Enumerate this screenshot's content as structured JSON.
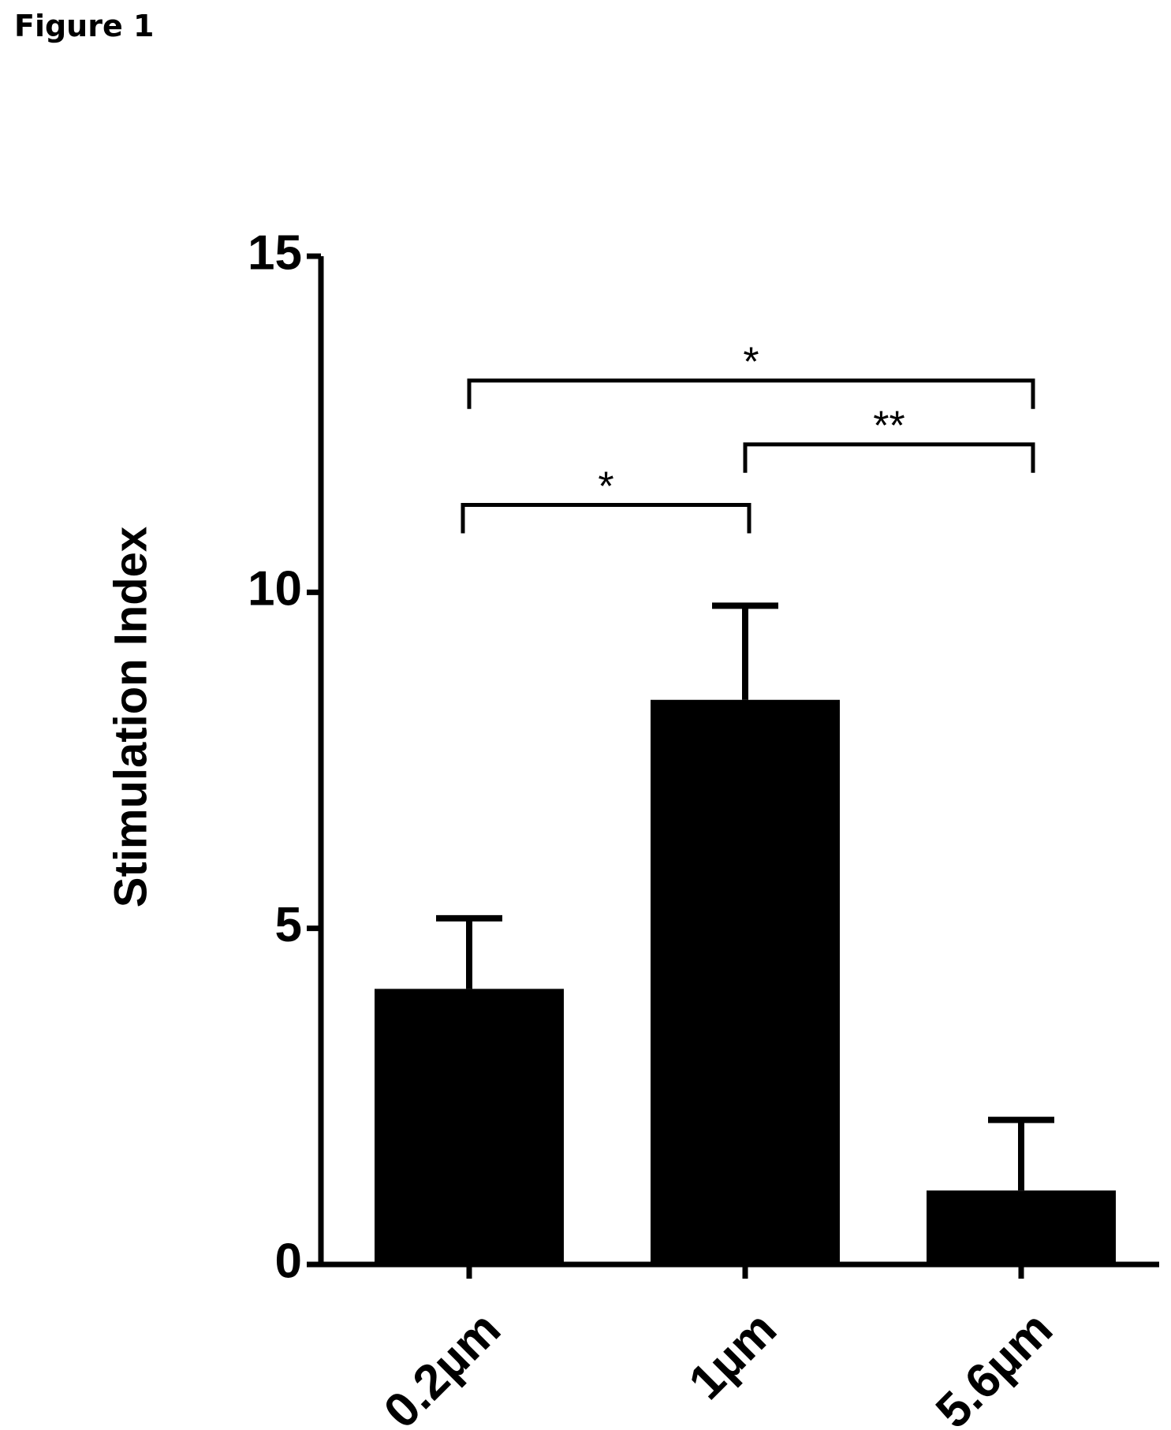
{
  "figure_label": "Figure 1",
  "chart_data": {
    "type": "bar",
    "categories": [
      "0.2µm",
      "1µm",
      "5.6µm"
    ],
    "values": [
      4.1,
      8.4,
      1.1
    ],
    "error_upper": [
      5.15,
      9.8,
      2.15
    ],
    "title": "",
    "xlabel": "",
    "ylabel": "Stimulation Index",
    "ylim": [
      0,
      15
    ],
    "yticks": [
      0,
      5,
      10,
      15
    ],
    "ytick_labels": [
      "0",
      "5",
      "10",
      "15"
    ],
    "bar_color": "#000000",
    "grid": false,
    "significance": [
      {
        "from": 0,
        "to": 1,
        "label": "*",
        "y": 11.3
      },
      {
        "from": 1,
        "to": 2,
        "label": "**",
        "y": 12.2
      },
      {
        "from": 0,
        "to": 2,
        "label": "*",
        "y": 13.15
      }
    ]
  }
}
